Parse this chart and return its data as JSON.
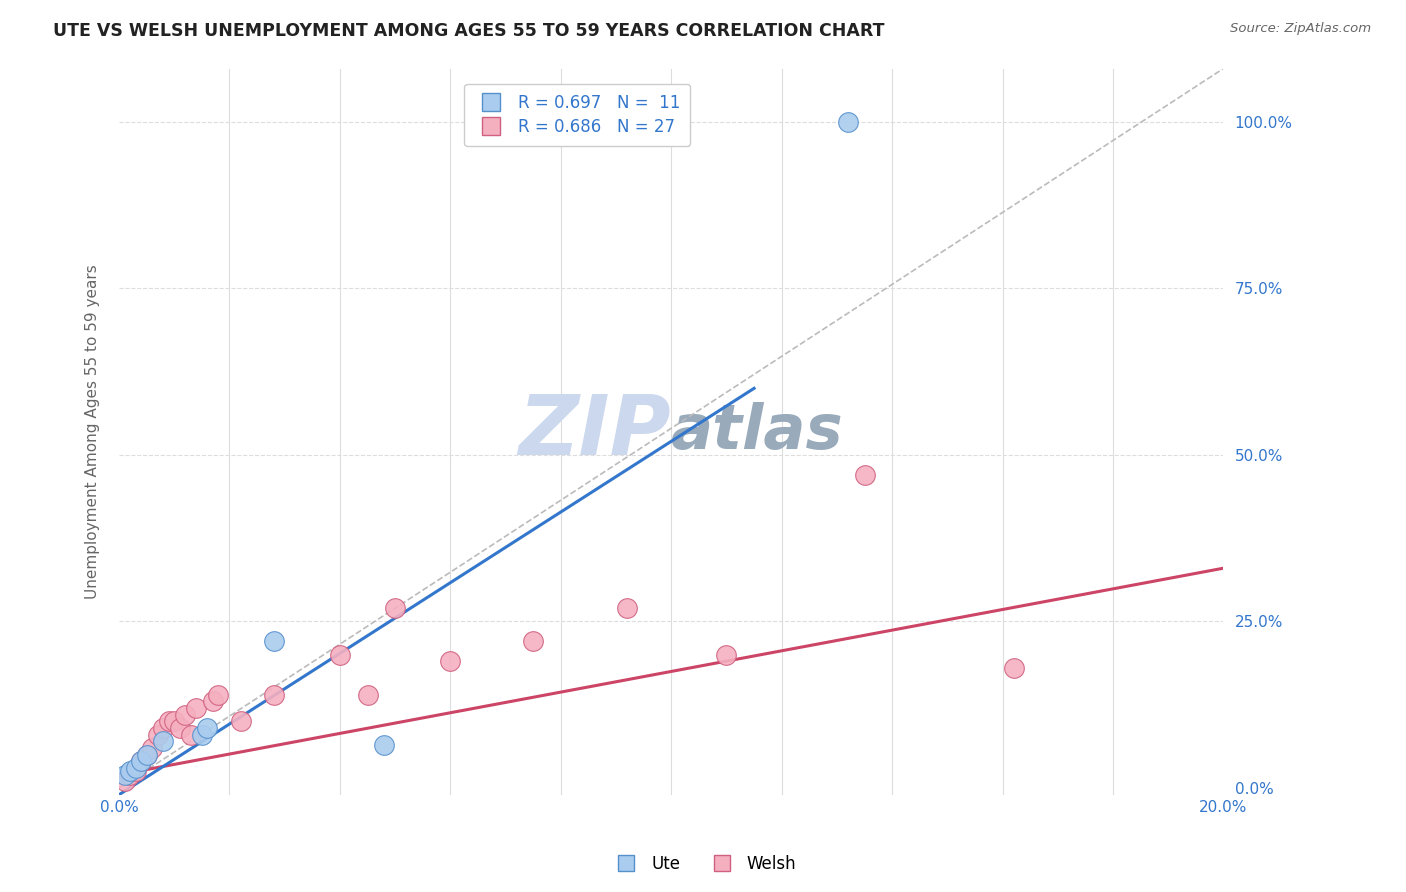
{
  "title": "UTE VS WELSH UNEMPLOYMENT AMONG AGES 55 TO 59 YEARS CORRELATION CHART",
  "source": "Source: ZipAtlas.com",
  "ylabel_left": "Unemployment Among Ages 55 to 59 years",
  "xlim": [
    0.0,
    0.2
  ],
  "ylim": [
    -0.01,
    1.08
  ],
  "legend_entries": [
    {
      "label": "R = 0.697   N =  11",
      "color": "#aaccee"
    },
    {
      "label": "R = 0.686   N = 27",
      "color": "#f5b0c0"
    }
  ],
  "ute_scatter": {
    "x": [
      0.001,
      0.002,
      0.003,
      0.004,
      0.005,
      0.008,
      0.015,
      0.016,
      0.028,
      0.048,
      0.132
    ],
    "y": [
      0.02,
      0.025,
      0.03,
      0.04,
      0.05,
      0.07,
      0.08,
      0.09,
      0.22,
      0.065,
      1.0
    ],
    "color": "#aaccee",
    "edgecolor": "#5590cc",
    "size": 200
  },
  "welsh_scatter": {
    "x": [
      0.001,
      0.002,
      0.003,
      0.004,
      0.005,
      0.006,
      0.007,
      0.008,
      0.009,
      0.01,
      0.011,
      0.012,
      0.013,
      0.014,
      0.017,
      0.018,
      0.022,
      0.028,
      0.04,
      0.045,
      0.05,
      0.06,
      0.075,
      0.092,
      0.11,
      0.135,
      0.162
    ],
    "y": [
      0.01,
      0.02,
      0.025,
      0.04,
      0.05,
      0.06,
      0.08,
      0.09,
      0.1,
      0.1,
      0.09,
      0.11,
      0.08,
      0.12,
      0.13,
      0.14,
      0.1,
      0.14,
      0.2,
      0.14,
      0.27,
      0.19,
      0.22,
      0.27,
      0.2,
      0.47,
      0.18
    ],
    "color": "#f5b0c0",
    "edgecolor": "#d06080",
    "size": 200
  },
  "ute_regression": {
    "x": [
      0.0,
      0.115
    ],
    "y": [
      -0.01,
      0.6
    ],
    "color": "#3377cc",
    "linewidth": 2.2
  },
  "welsh_regression": {
    "x": [
      0.0,
      0.2
    ],
    "y": [
      0.02,
      0.33
    ],
    "color": "#cc4466",
    "linewidth": 2.2
  },
  "diagonal_line": {
    "x": [
      0.0,
      0.2
    ],
    "y": [
      0.0,
      1.08
    ],
    "color": "#bbbbbb",
    "linewidth": 1.2,
    "linestyle": "--"
  },
  "title_color": "#222222",
  "source_color": "#666666",
  "axis_label_color": "#3377cc",
  "grid_color": "#dddddd",
  "watermark_zip_color": "#ccd8ee",
  "watermark_atlas_color": "#99aabb",
  "watermark_fontsize": 60,
  "background_color": "#ffffff"
}
